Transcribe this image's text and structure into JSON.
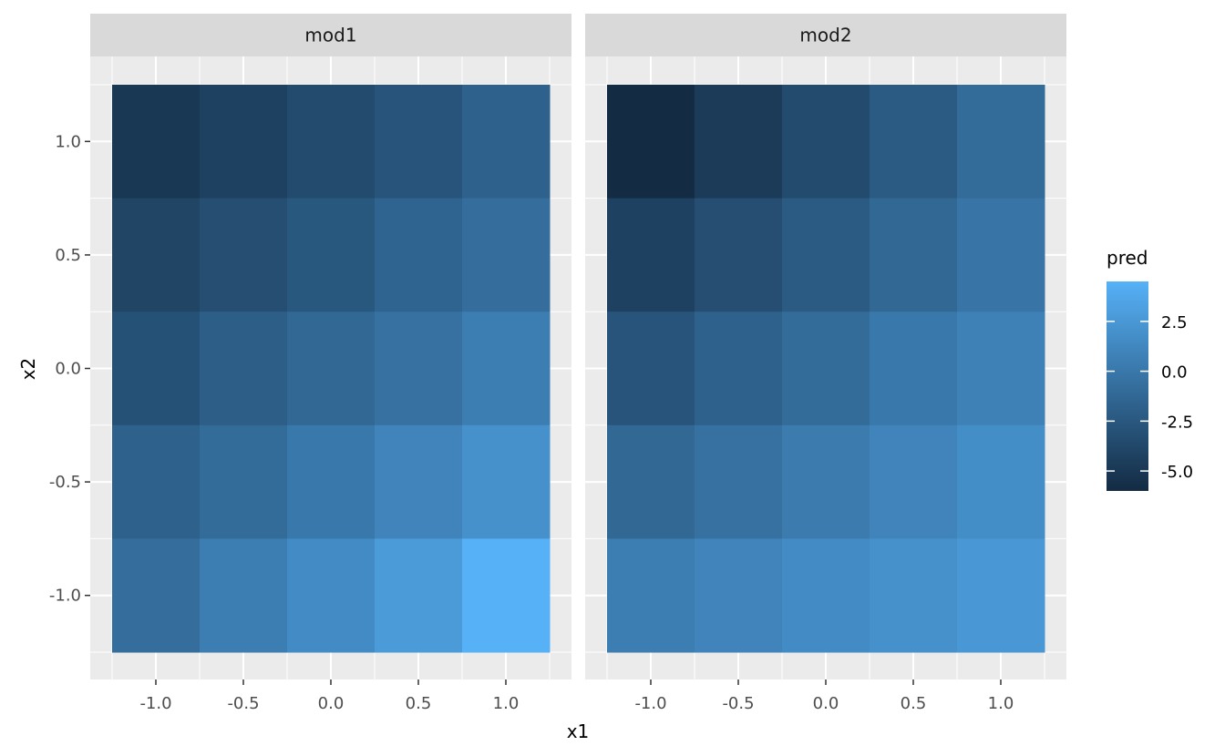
{
  "chart_data": {
    "type": "heatmap",
    "xlabel": "x1",
    "ylabel": "x2",
    "x_ticks": [
      -1.0,
      -0.5,
      0.0,
      0.5,
      1.0
    ],
    "y_ticks": [
      -1.0,
      -0.5,
      0.0,
      0.5,
      1.0
    ],
    "x_tick_labels": [
      "-1.0",
      "-0.5",
      "0.0",
      "0.5",
      "1.0"
    ],
    "y_tick_labels": [
      "-1.0",
      "-0.5",
      "0.0",
      "0.5",
      "1.0"
    ],
    "xlim": [
      -1.25,
      1.25
    ],
    "ylim": [
      -1.25,
      1.25
    ],
    "grid": true,
    "legend": {
      "title": "pred",
      "position": "right",
      "breaks": [
        2.5,
        0.0,
        -2.5,
        -5.0
      ],
      "break_labels": [
        "2.5",
        "0.0",
        "-2.5",
        "-5.0"
      ],
      "limits": [
        -6,
        4.5
      ],
      "low_color": "#132B43",
      "high_color": "#56B1F7"
    },
    "x": [
      -1.0,
      -0.5,
      0.0,
      0.5,
      1.0
    ],
    "y": [
      1.0,
      0.5,
      0.0,
      -0.5,
      -1.0
    ],
    "panels": [
      {
        "name": "mod1",
        "values": [
          [
            -5.0,
            -4.25,
            -3.5,
            -2.75,
            -1.75
          ],
          [
            -4.0,
            -3.25,
            -2.5,
            -1.5,
            -0.75
          ],
          [
            -3.0,
            -2.0,
            -1.25,
            -0.5,
            0.5
          ],
          [
            -1.75,
            -1.0,
            0.0,
            1.0,
            2.0
          ],
          [
            -0.75,
            0.5,
            1.5,
            2.75,
            4.5
          ]
        ]
      },
      {
        "name": "mod2",
        "values": [
          [
            -6.0,
            -4.75,
            -3.5,
            -2.25,
            -1.0
          ],
          [
            -4.25,
            -3.25,
            -2.25,
            -1.25,
            -0.25
          ],
          [
            -2.75,
            -1.75,
            -1.0,
            0.0,
            0.75
          ],
          [
            -1.25,
            -0.5,
            0.25,
            1.0,
            1.75
          ],
          [
            0.5,
            1.0,
            1.5,
            2.0,
            2.5
          ]
        ]
      }
    ]
  }
}
